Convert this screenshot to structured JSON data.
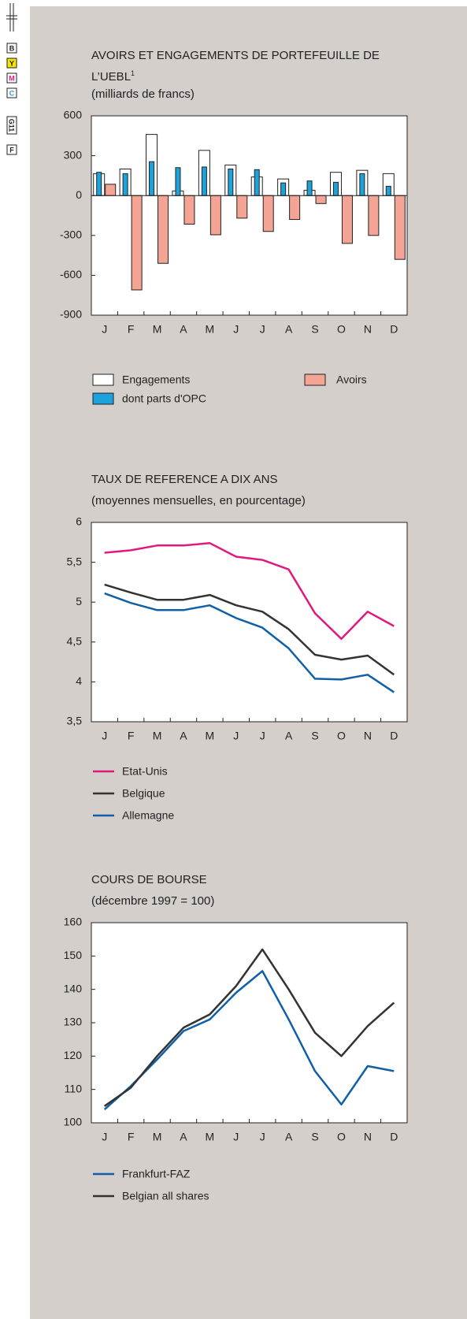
{
  "printer_marks": [
    "B",
    "Y",
    "M",
    "C",
    "G11",
    "F"
  ],
  "chart_data": [
    {
      "type": "bar",
      "title": "AVOIRS ET ENGAGEMENTS DE PORTEFEUILLE DE L’UEBL",
      "title_note": "1",
      "subtitle": "(milliards de francs)",
      "categories": [
        "J",
        "F",
        "M",
        "A",
        "M",
        "J",
        "J",
        "A",
        "S",
        "O",
        "N",
        "D"
      ],
      "series": [
        {
          "name": "Engagements",
          "color": "#ffffff",
          "values": [
            165,
            200,
            460,
            35,
            340,
            230,
            140,
            125,
            40,
            175,
            190,
            165
          ]
        },
        {
          "name": "dont parts d'OPC",
          "color": "#1ca3dc",
          "values": [
            175,
            165,
            255,
            210,
            215,
            200,
            195,
            95,
            110,
            100,
            165,
            70
          ]
        },
        {
          "name": "Avoirs",
          "color": "#f4a494",
          "values": [
            85,
            -710,
            -510,
            -215,
            -295,
            -170,
            -270,
            -180,
            -60,
            -360,
            -300,
            -480
          ]
        }
      ],
      "ylim": [
        -900,
        600
      ],
      "yticks": [
        600,
        300,
        0,
        -300,
        -600,
        -900
      ]
    },
    {
      "type": "line",
      "title": "TAUX DE REFERENCE A DIX ANS",
      "subtitle": "(moyennes mensuelles, en pourcentage)",
      "categories": [
        "J",
        "F",
        "M",
        "A",
        "M",
        "J",
        "J",
        "A",
        "S",
        "O",
        "N",
        "D"
      ],
      "series": [
        {
          "name": "Etat-Unis",
          "color": "#e0197d",
          "values": [
            5.62,
            5.65,
            5.71,
            5.71,
            5.74,
            5.57,
            5.53,
            5.41,
            4.86,
            4.54,
            4.88,
            4.7
          ]
        },
        {
          "name": "Belgique",
          "color": "#333333",
          "values": [
            5.22,
            5.12,
            5.03,
            5.03,
            5.09,
            4.96,
            4.88,
            4.66,
            4.34,
            4.28,
            4.33,
            4.09
          ]
        },
        {
          "name": "Allemagne",
          "color": "#1060a8",
          "values": [
            5.11,
            4.99,
            4.9,
            4.9,
            4.96,
            4.8,
            4.68,
            4.42,
            4.04,
            4.03,
            4.09,
            3.87
          ]
        }
      ],
      "ylim": [
        3.5,
        6
      ],
      "yticks": [
        6,
        {
          "value": 5.5,
          "label": "5,5"
        },
        5,
        {
          "value": 4.5,
          "label": "4,5"
        },
        4,
        {
          "value": 3.5,
          "label": "3,5"
        }
      ]
    },
    {
      "type": "line",
      "title": "COURS DE BOURSE",
      "subtitle": "(décembre 1997 = 100)",
      "categories": [
        "J",
        "F",
        "M",
        "A",
        "M",
        "J",
        "J",
        "A",
        "S",
        "O",
        "N",
        "D"
      ],
      "series": [
        {
          "name": "Frankfurt-FAZ",
          "color": "#1060a8",
          "values": [
            104,
            111,
            119,
            127.5,
            131,
            139,
            145.5,
            131,
            115.5,
            105.5,
            117,
            115.5
          ]
        },
        {
          "name": "Belgian all shares",
          "color": "#333333",
          "values": [
            105,
            110.5,
            120,
            128.5,
            132.5,
            141,
            152,
            140,
            127,
            120,
            129,
            136
          ]
        }
      ],
      "ylim": [
        100,
        160
      ],
      "yticks": [
        160,
        150,
        140,
        130,
        120,
        110,
        100
      ]
    }
  ]
}
